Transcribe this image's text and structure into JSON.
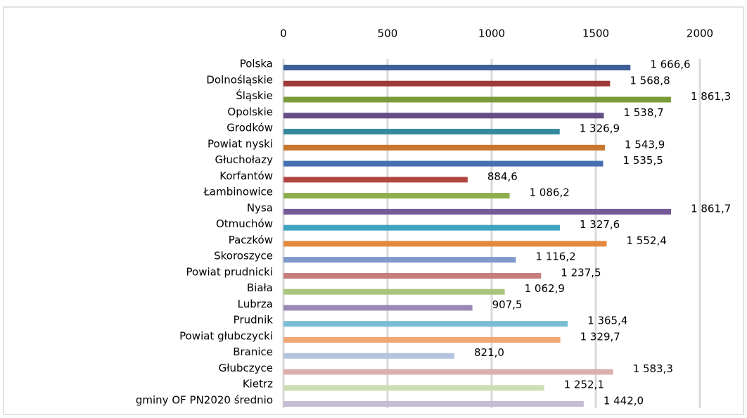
{
  "chart_data": {
    "type": "bar",
    "orientation": "horizontal",
    "categories": [
      "Polska",
      "Dolnośląskie",
      "Śląskie",
      "Opolskie",
      "Grodków",
      "Powiat nyski",
      "Głuchołazy",
      "Korfantów",
      "Łambinowice",
      "Nysa",
      "Otmuchów",
      "Paczków",
      "Skoroszyce",
      "Powiat prudnicki",
      "Biała",
      "Lubrza",
      "Prudnik",
      "Powiat głubczycki",
      "Branice",
      "Głubczyce",
      "Kietrz",
      "gminy OF PN2020 średnio"
    ],
    "values": [
      1666.6,
      1568.8,
      1861.3,
      1538.7,
      1326.9,
      1543.9,
      1535.5,
      884.6,
      1086.2,
      1861.7,
      1327.6,
      1552.4,
      1116.2,
      1237.5,
      1062.9,
      907.5,
      1365.4,
      1329.7,
      821.0,
      1583.3,
      1252.1,
      1442.0
    ],
    "value_labels": [
      "1 666,6",
      "1 568,8",
      "1 861,3",
      "1 538,7",
      "1 326,9",
      "1 543,9",
      "1 535,5",
      "884,6",
      "1 086,2",
      "1 861,7",
      "1 327,6",
      "1 552,4",
      "1 116,2",
      "1 237,5",
      "1 062,9",
      "907,5",
      "1 365,4",
      "1 329,7",
      "821,0",
      "1 583,3",
      "1 252,1",
      "1 442,0"
    ],
    "colors": [
      "#3d5f97",
      "#9e3b38",
      "#7b9a3a",
      "#654d86",
      "#35899f",
      "#c97730",
      "#4470b1",
      "#b24541",
      "#8daf4b",
      "#755a98",
      "#40a3c0",
      "#e38a3e",
      "#7f99ca",
      "#c77d7b",
      "#a9c57d",
      "#9a88b5",
      "#79bcd3",
      "#f2a674",
      "#b4c3de",
      "#dcafad",
      "#cfddb5",
      "#c6bcd5"
    ],
    "xlim": [
      0,
      2000
    ],
    "xticks": [
      0,
      500,
      1000,
      1500,
      2000
    ],
    "grid": true,
    "axis_position": "top"
  }
}
